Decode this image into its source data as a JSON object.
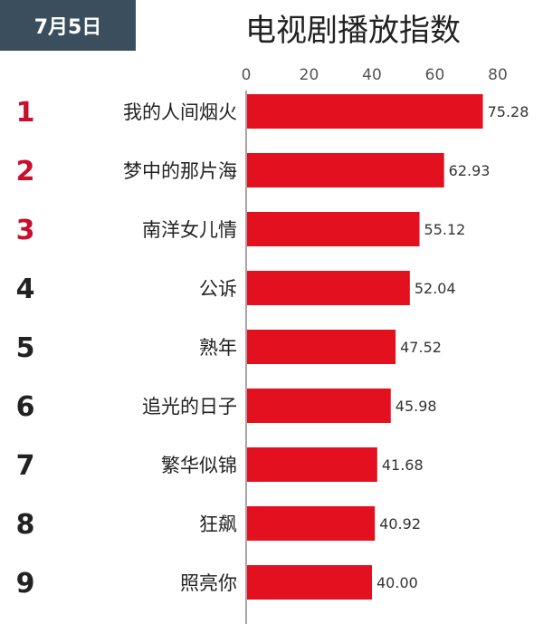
{
  "header": {
    "date": "7月5日",
    "title": "电视剧播放指数"
  },
  "colors": {
    "bar": "#e3101f",
    "rank_top": "#c8102e",
    "rank_other": "#222222",
    "badge": "#3a4e5e"
  },
  "chart_data": {
    "type": "bar",
    "orientation": "horizontal",
    "title": "电视剧播放指数",
    "ranks": [
      "1",
      "2",
      "3",
      "4",
      "5",
      "6",
      "7",
      "8",
      "9"
    ],
    "categories": [
      "我的人间烟火",
      "梦中的那片海",
      "南洋女儿情",
      "公诉",
      "熟年",
      "追光的日子",
      "繁华似锦",
      "狂飙",
      "照亮你"
    ],
    "values": [
      75.28,
      62.93,
      55.12,
      52.04,
      47.52,
      45.98,
      41.68,
      40.92,
      40.0
    ],
    "value_labels": [
      "75.28",
      "62.93",
      "55.12",
      "52.04",
      "47.52",
      "45.98",
      "41.68",
      "40.92",
      "40.00"
    ],
    "xlim": [
      0,
      80
    ],
    "xticks": [
      "0",
      "20",
      "40",
      "60",
      "80"
    ],
    "axis_position": "top",
    "grid": false,
    "legend": false
  }
}
